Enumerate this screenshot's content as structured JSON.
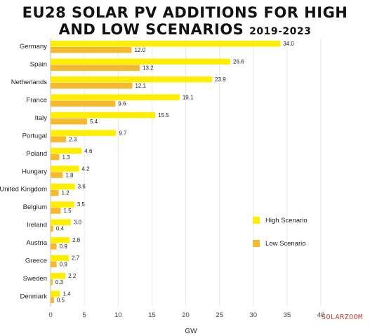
{
  "title": {
    "line1": "EU28 SOLAR PV ADDITIONS FOR HIGH",
    "line2": "AND LOW SCENARIOS",
    "years": "2019-2023"
  },
  "brand": "SOLARZOOM",
  "colors": {
    "high": "#FFEE00",
    "low": "#F5B82E"
  },
  "chart_data": {
    "type": "bar",
    "orientation": "horizontal",
    "categories": [
      "Germany",
      "Spain",
      "Netherlands",
      "France",
      "Italy",
      "Portugal",
      "Poland",
      "Hungary",
      "United Kingdom",
      "Belgium",
      "Ireland",
      "Austria",
      "Greece",
      "Sweden",
      "Denmark"
    ],
    "series": [
      {
        "name": "High Scenario",
        "values": [
          34.0,
          26.6,
          23.9,
          19.1,
          15.5,
          9.7,
          4.6,
          4.2,
          3.6,
          3.5,
          3.0,
          2.8,
          2.7,
          2.2,
          1.4
        ],
        "labels": [
          "34.0",
          "26.6",
          "23.9",
          "19.1",
          "15.5",
          "9.7",
          "4.6",
          "4.2",
          "3.6",
          "3.5",
          "3.0",
          "2.8",
          "2.7",
          "2.2",
          "1.4"
        ]
      },
      {
        "name": "Low Scenario",
        "values": [
          12.0,
          13.2,
          12.1,
          9.6,
          5.4,
          2.3,
          1.3,
          1.8,
          1.2,
          1.5,
          0.4,
          0.9,
          0.9,
          0.3,
          0.5
        ],
        "labels": [
          "12.0",
          "13.2",
          "12.1",
          "9.6",
          "5.4",
          "2.3",
          "1.3",
          "1.8",
          "1.2",
          "1.5",
          "0.4",
          "0.9",
          "0.9",
          "0.3",
          "0.5"
        ]
      }
    ],
    "xlabel": "GW",
    "xlim": [
      0,
      40
    ],
    "xticks": [
      0,
      5,
      10,
      15,
      20,
      25,
      30,
      35,
      40
    ],
    "grid": true,
    "legend": "right"
  }
}
